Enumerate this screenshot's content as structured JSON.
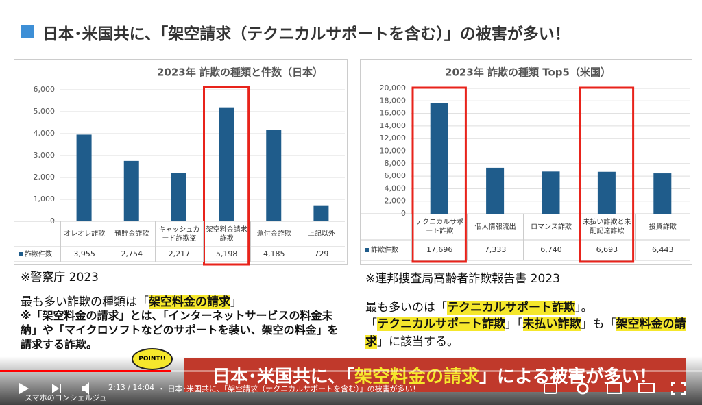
{
  "slide_title": "日本･米国共に、「架空請求（テクニカルサポートを含む）」の被害が多い！",
  "chart_data": [
    {
      "type": "bar",
      "title": "2023年 詐欺の種類と件数（日本）",
      "categories": [
        "オレオレ詐欺",
        "預貯金詐欺",
        "キャッシュカード詐欺盗",
        "架空料金請求詐欺",
        "還付金詐欺",
        "上記以外"
      ],
      "series": [
        {
          "name": "詐欺件数",
          "color": "#1f5c8b",
          "values": [
            3955,
            2754,
            2217,
            5198,
            4185,
            729
          ],
          "value_labels": [
            "3,955",
            "2,754",
            "2,217",
            "5,198",
            "4,185",
            "729"
          ]
        }
      ],
      "ylim": [
        0,
        6000
      ],
      "yticks": [
        0,
        {
          "value": 1000,
          "label": "1,000"
        },
        {
          "value": 2000,
          "label": "2,000"
        },
        {
          "value": 3000,
          "label": "3,000"
        },
        {
          "value": 4000,
          "label": "4,000"
        },
        {
          "value": 5000,
          "label": "5,000"
        },
        {
          "value": 6000,
          "label": "6,000"
        }
      ],
      "grid": true
    },
    {
      "type": "bar",
      "title": "2023年 詐欺の種類 Top5（米国）",
      "categories": [
        "テクニカルサポート詐欺",
        "個人情報流出",
        "ロマンス詐欺",
        "未払い詐欺と未配記達詐欺",
        "投資詐欺"
      ],
      "series": [
        {
          "name": "詐欺件数",
          "color": "#1f5c8b",
          "values": [
            17696,
            7333,
            6740,
            6693,
            6443
          ],
          "value_labels": [
            "17,696",
            "7,333",
            "6,740",
            "6,693",
            "6,443"
          ]
        }
      ],
      "ylim": [
        0,
        20000
      ],
      "yticks": [
        0,
        {
          "value": 2000,
          "label": "2,000"
        },
        {
          "value": 4000,
          "label": "4,000"
        },
        {
          "value": 6000,
          "label": "6,000"
        },
        {
          "value": 8000,
          "label": "8,000"
        },
        {
          "value": 10000,
          "label": "10,000"
        },
        {
          "value": 12000,
          "label": "12,000"
        },
        {
          "value": 14000,
          "label": "14,000"
        },
        {
          "value": 16000,
          "label": "16,000"
        },
        {
          "value": 18000,
          "label": "18,000"
        },
        {
          "value": 20000,
          "label": "20,000"
        }
      ],
      "grid": true
    }
  ],
  "japan": {
    "source": "※警察庁 2023",
    "summary": [
      "最も多い詐欺の種類は「",
      "架空料金の請求",
      "」"
    ],
    "note": "※「架空料金の請求」とは、「インターネットサービスの料金未納」や「マイクロソフトなどのサポートを装い、架空の料金」を請求する詐欺。"
  },
  "usa": {
    "source": "※連邦捜査局高齢者詐欺報告書 2023",
    "summary": [
      "最も多いのは「",
      "テクニカルサポート詐欺",
      "」。"
    ],
    "detail": [
      "「",
      "テクニカルサポート詐欺",
      "」「",
      "未払い詐欺",
      "」も「",
      "架空料金の請求",
      "」に該当する。"
    ]
  },
  "banner": [
    "日本･米国共に、「",
    "架空料金の請求",
    "」による被害が多い！"
  ],
  "point": "POINT!!",
  "player": {
    "time": "2:13 / 14:04",
    "chapter": "・ 日本･米国共に、「架空請求（テクニカルサポートを含む）」の被害が多い！",
    "channel": "スマホのコンシェルジュ"
  }
}
